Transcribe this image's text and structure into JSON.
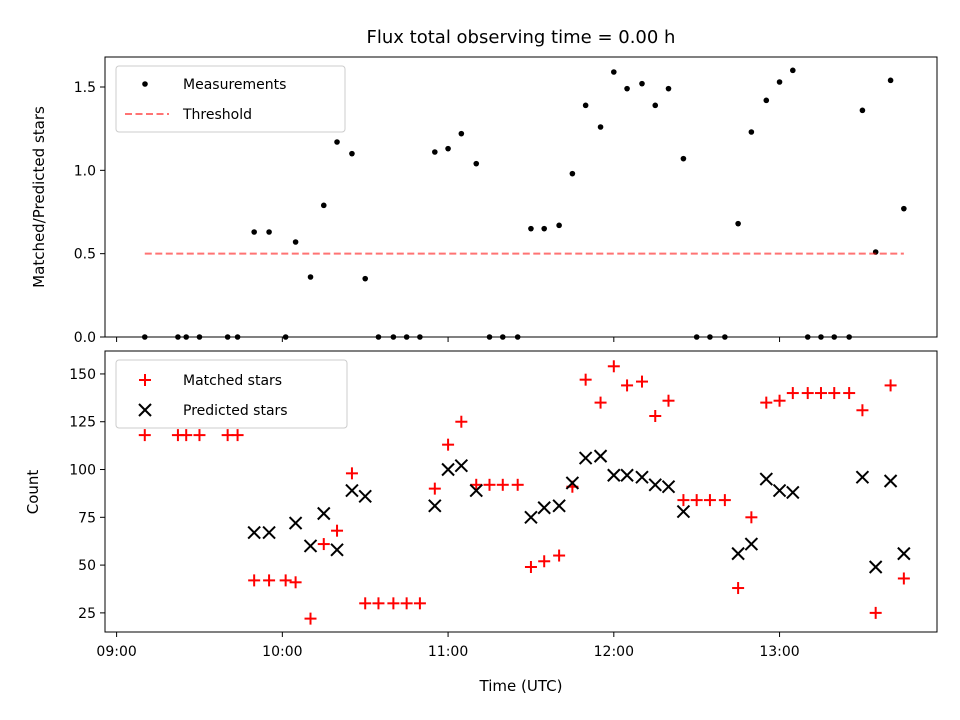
{
  "chart_data": [
    {
      "type": "scatter",
      "title": "Flux total observing time = 0.00 h",
      "ylabel": "Matched/Predicted stars",
      "xlabel": "",
      "xlim": [
        8.93,
        13.95
      ],
      "ylim": [
        0,
        1.68
      ],
      "yticks": [
        "0.0",
        "0.5",
        "1.0",
        "1.5"
      ],
      "ytick_values": [
        0,
        0.5,
        1.0,
        1.5
      ],
      "legend_position": "upper left",
      "legend": [
        "Measurements",
        "Threshold"
      ],
      "series": [
        {
          "name": "Measurements",
          "color": "#000000",
          "marker": "dot",
          "x": [
            9.17,
            9.37,
            9.42,
            9.5,
            9.67,
            9.73,
            9.83,
            9.92,
            10.02,
            10.08,
            10.17,
            10.25,
            10.33,
            10.42,
            10.5,
            10.58,
            10.67,
            10.75,
            10.83,
            10.92,
            11.0,
            11.08,
            11.17,
            11.25,
            11.33,
            11.42,
            11.5,
            11.58,
            11.67,
            11.75,
            11.83,
            11.92,
            12.0,
            12.08,
            12.17,
            12.25,
            12.33,
            12.42,
            12.5,
            12.58,
            12.67,
            12.75,
            12.83,
            12.92,
            13.0,
            13.08,
            13.17,
            13.25,
            13.33,
            13.42,
            13.5,
            13.58,
            13.67,
            13.75
          ],
          "y": [
            0.0,
            0.0,
            0.0,
            0.0,
            0.0,
            0.0,
            0.63,
            0.63,
            0.0,
            0.57,
            0.36,
            0.79,
            1.17,
            1.1,
            0.35,
            0.0,
            0.0,
            0.0,
            0.0,
            1.11,
            1.13,
            1.22,
            1.04,
            0.0,
            0.0,
            0.0,
            0.65,
            0.65,
            0.67,
            0.98,
            1.39,
            1.26,
            1.59,
            1.49,
            1.52,
            1.39,
            1.49,
            1.07,
            0.0,
            0.0,
            0.0,
            0.68,
            1.23,
            1.42,
            1.53,
            1.6,
            0.0,
            0.0,
            0.0,
            0.0,
            1.36,
            0.51,
            1.54,
            0.77
          ]
        },
        {
          "name": "Threshold",
          "color": "#ff0000",
          "style": "dashed",
          "x": [
            9.17,
            13.75
          ],
          "y": [
            0.5,
            0.5
          ]
        }
      ]
    },
    {
      "type": "scatter",
      "xlabel": "Time (UTC)",
      "ylabel": "Count",
      "xlim": [
        8.93,
        13.95
      ],
      "ylim": [
        15,
        162
      ],
      "xticks": [
        "09:00",
        "10:00",
        "11:00",
        "12:00",
        "13:00"
      ],
      "xtick_values": [
        9,
        10,
        11,
        12,
        13
      ],
      "yticks": [
        "25",
        "50",
        "75",
        "100",
        "125",
        "150"
      ],
      "ytick_values": [
        25,
        50,
        75,
        100,
        125,
        150
      ],
      "legend_position": "upper left",
      "legend": [
        "Matched stars",
        "Predicted stars"
      ],
      "series": [
        {
          "name": "Matched stars",
          "color": "#ff0000",
          "marker": "plus",
          "x": [
            9.17,
            9.37,
            9.42,
            9.5,
            9.67,
            9.73,
            9.83,
            9.92,
            10.02,
            10.08,
            10.17,
            10.25,
            10.33,
            10.42,
            10.5,
            10.58,
            10.67,
            10.75,
            10.83,
            10.92,
            11.0,
            11.08,
            11.17,
            11.25,
            11.33,
            11.42,
            11.5,
            11.58,
            11.67,
            11.75,
            11.83,
            11.92,
            12.0,
            12.08,
            12.17,
            12.25,
            12.33,
            12.42,
            12.5,
            12.58,
            12.67,
            12.75,
            12.83,
            12.92,
            13.0,
            13.08,
            13.17,
            13.25,
            13.33,
            13.42,
            13.5,
            13.58,
            13.67,
            13.75
          ],
          "y": [
            118,
            118,
            118,
            118,
            118,
            118,
            42,
            42,
            42,
            41,
            22,
            61,
            68,
            98,
            30,
            30,
            30,
            30,
            30,
            90,
            113,
            125,
            92,
            92,
            92,
            92,
            49,
            52,
            55,
            91,
            147,
            135,
            154,
            144,
            146,
            128,
            136,
            84,
            84,
            84,
            84,
            38,
            75,
            135,
            136,
            140,
            140,
            140,
            140,
            140,
            131,
            25,
            144,
            43
          ]
        },
        {
          "name": "Predicted stars",
          "color": "#000000",
          "marker": "x",
          "x": [
            9.83,
            9.92,
            10.08,
            10.17,
            10.25,
            10.33,
            10.42,
            10.5,
            10.92,
            11.0,
            11.08,
            11.17,
            11.5,
            11.58,
            11.67,
            11.75,
            11.83,
            11.92,
            12.0,
            12.08,
            12.17,
            12.25,
            12.33,
            12.42,
            12.75,
            12.83,
            12.92,
            13.0,
            13.08,
            13.5,
            13.58,
            13.67,
            13.75
          ],
          "y": [
            67,
            67,
            72,
            60,
            77,
            58,
            89,
            86,
            81,
            100,
            102,
            89,
            75,
            80,
            81,
            93,
            106,
            107,
            97,
            97,
            96,
            92,
            91,
            78,
            56,
            61,
            95,
            89,
            88,
            96,
            49,
            94,
            56
          ]
        }
      ]
    }
  ]
}
